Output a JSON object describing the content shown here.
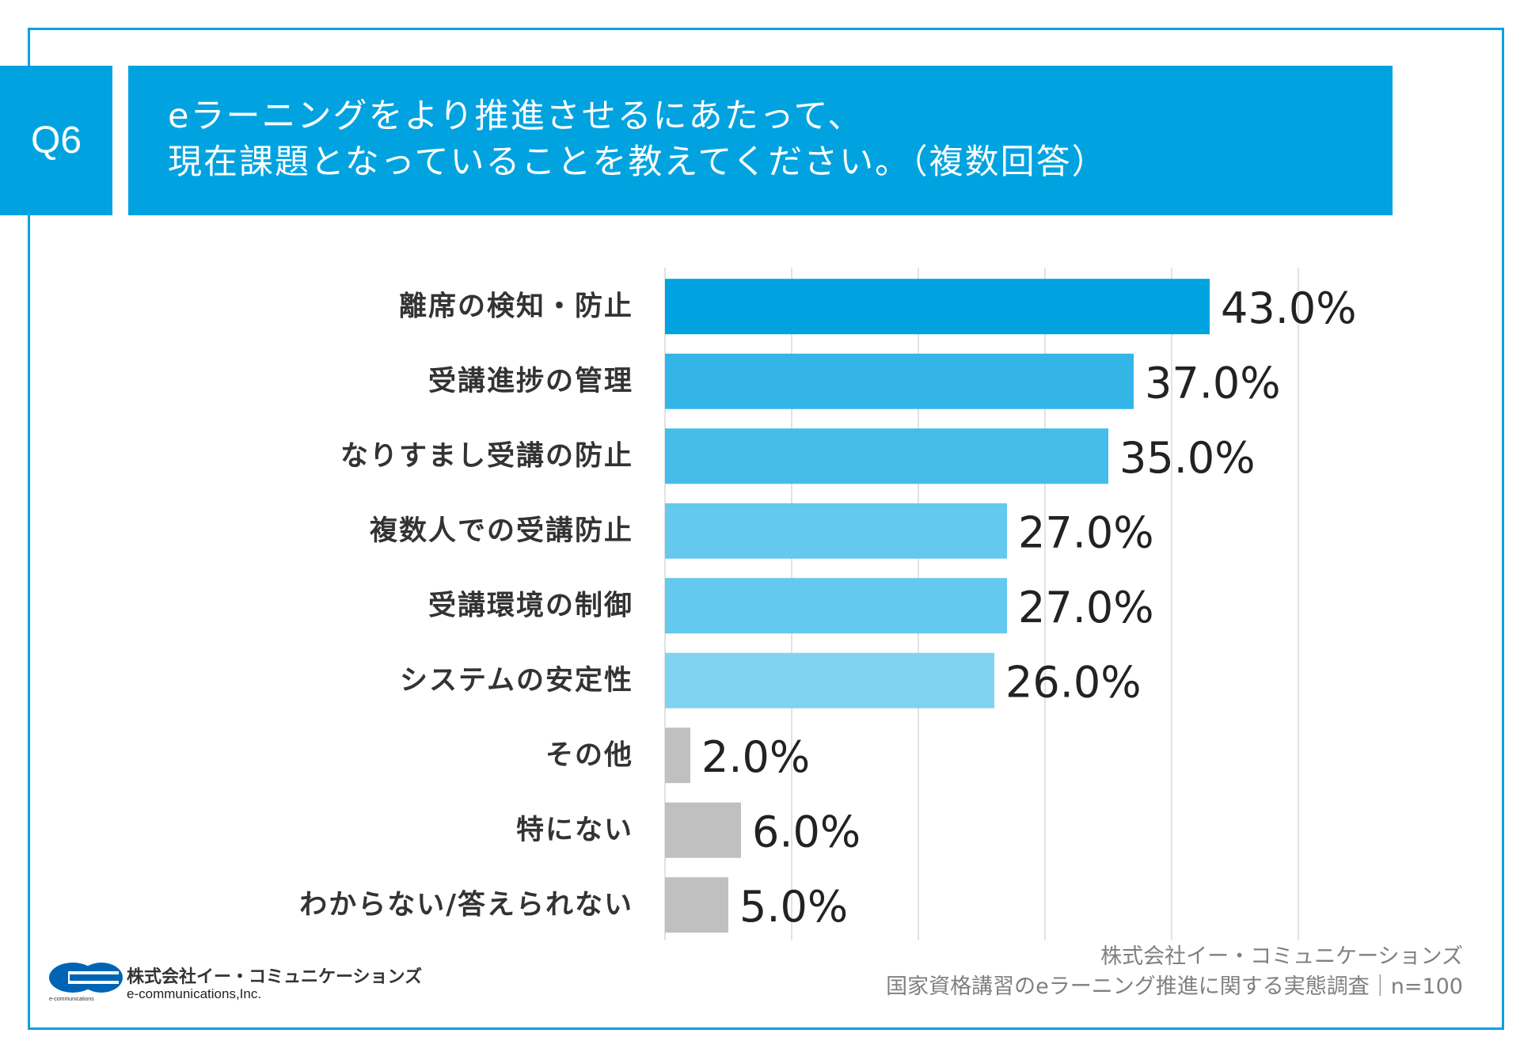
{
  "question": {
    "badge": "Q6",
    "line1": "eラーニングをより推進させるにあたって、",
    "line2": "現在課題となっていることを教えてください。（複数回答）"
  },
  "chart_data": {
    "type": "bar",
    "orientation": "horizontal",
    "categories": [
      "離席の検知・防止",
      "受講進捗の管理",
      "なりすまし受講の防止",
      "複数人での受講防止",
      "受講環境の制御",
      "システムの安定性",
      "その他",
      "特にない",
      "わからない/答えられない"
    ],
    "values": [
      43.0,
      37.0,
      35.0,
      27.0,
      27.0,
      26.0,
      2.0,
      6.0,
      5.0
    ],
    "value_labels": [
      "43.0%",
      "37.0%",
      "35.0%",
      "27.0%",
      "27.0%",
      "26.0%",
      "2.0%",
      "6.0%",
      "5.0%"
    ],
    "colors": [
      "#00a3e0",
      "#33b5e8",
      "#45bdeb",
      "#64c8ef",
      "#64c8ef",
      "#7fd2f2",
      "#c0c0c0",
      "#c0c0c0",
      "#c0c0c0"
    ],
    "xlim": [
      0,
      50
    ],
    "grid": true,
    "axis_labels_shown": false
  },
  "source": {
    "company": "株式会社イー・コミュニケーションズ",
    "survey": "国家資格講習のeラーニング推進に関する実態調査｜n=100"
  },
  "logo": {
    "name_ja": "株式会社イー・コミュニケーションズ",
    "name_en": "e-communications,Inc.",
    "tiny": "e-communications"
  }
}
